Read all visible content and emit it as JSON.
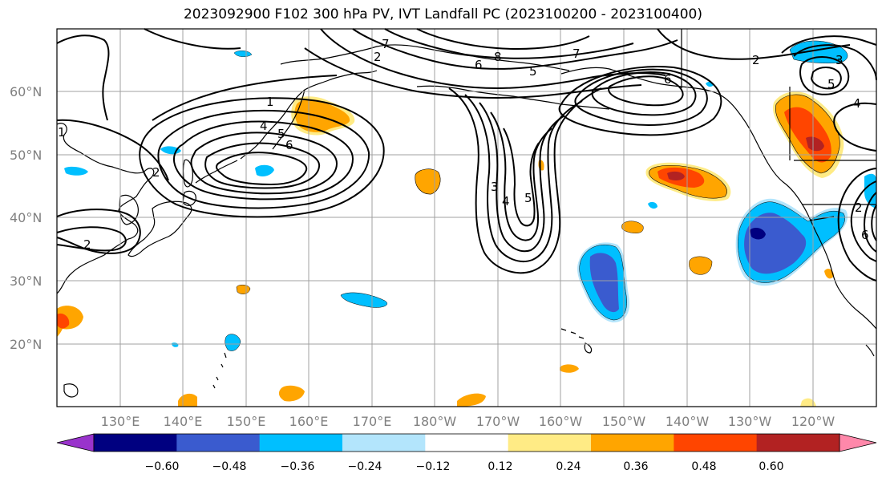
{
  "title": "2023092900 F102 300 hPa PV, IVT Landfall PC (2023100200 - 2023100400)",
  "lat_ticks": [
    "60°N",
    "50°N",
    "40°N",
    "30°N",
    "20°N"
  ],
  "lon_ticks": [
    "130°E",
    "140°E",
    "150°E",
    "160°E",
    "170°E",
    "180°W",
    "170°W",
    "160°W",
    "150°W",
    "140°W",
    "130°W",
    "120°W"
  ],
  "colorbar": {
    "colors": [
      "#9933cc",
      "#000080",
      "#3a5bcf",
      "#00bfff",
      "#b3e5fc",
      "#ffffff",
      "#ffeb85",
      "#ffa500",
      "#ff4500",
      "#b22222",
      "#ff88aa"
    ],
    "labels": [
      "−0.60",
      "−0.48",
      "−0.36",
      "−0.24",
      "−0.12",
      "0.12",
      "0.24",
      "0.36",
      "0.48",
      "0.60"
    ]
  },
  "contour_labels": [
    "1",
    "2",
    "2",
    "4",
    "5",
    "6",
    "2",
    "7",
    "8",
    "6",
    "5",
    "7",
    "6",
    "2",
    "3",
    "5",
    "4",
    "3",
    "4",
    "5",
    "6",
    "2",
    "1"
  ],
  "colors": {
    "contour": "#000000",
    "grid": "#a0a0a0",
    "coast": "#000000"
  }
}
